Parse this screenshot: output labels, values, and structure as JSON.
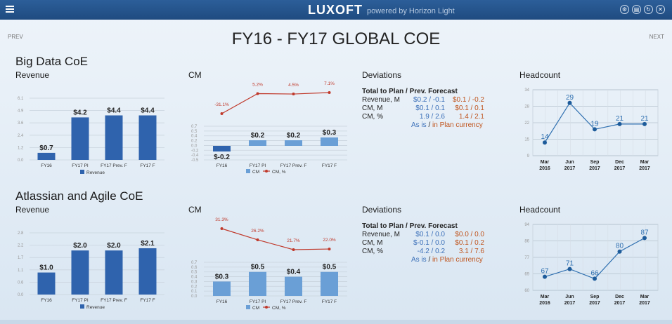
{
  "header": {
    "brand": "LUXOFT",
    "powered": "powered by Horizon Light",
    "icons": [
      "settings-icon",
      "print-icon",
      "refresh-icon",
      "close-icon"
    ]
  },
  "nav": {
    "prev": "PREV",
    "next": "NEXT"
  },
  "page_title": "FY16 - FY17 GLOBAL COE",
  "colors": {
    "bar": "#2f63ad",
    "cm_bar": "#6a9fd6",
    "neg_bar": "#2f63ad",
    "line": "#c0392b",
    "headcount": "#2e6fb0"
  },
  "sections": [
    {
      "title": "Big Data CoE",
      "revenue": {
        "title": "Revenue",
        "categories": [
          "FY16",
          "FY17 PI",
          "FY17 Prev. F",
          "FY17 F"
        ],
        "values": [
          0.7,
          4.2,
          4.4,
          4.4
        ],
        "labels": [
          "$0.7",
          "$4.2",
          "$4.4",
          "$4.4"
        ],
        "ticks": [
          "6.1",
          "4.9",
          "3.6",
          "2.4",
          "1.2",
          "0.0"
        ],
        "ylim": [
          0,
          6.1
        ],
        "legend": "Revenue"
      },
      "cm": {
        "title": "CM",
        "categories": [
          "FY16",
          "FY17 PI",
          "FY17 Prev. F",
          "FY17 F"
        ],
        "values": [
          -0.2,
          0.2,
          0.2,
          0.3
        ],
        "labels": [
          "$-0.2",
          "$0.2",
          "$0.2",
          "$0.3"
        ],
        "percents": [
          -31.1,
          5.2,
          4.5,
          7.1
        ],
        "percent_labels": [
          "-31.1%",
          "5.2%",
          "4.5%",
          "7.1%"
        ],
        "ticks": [
          "0.7",
          "0.5",
          "0.4",
          "0.2",
          "0.0",
          "-0.2",
          "-0.4",
          "-0.5"
        ],
        "ylim": [
          -0.5,
          0.7
        ],
        "legend_bar": "CM",
        "legend_line": "CM, %"
      },
      "deviations": {
        "title": "Deviations",
        "header": "Total to Plan / Prev. Forecast",
        "rows": [
          {
            "label": "Revenue, M",
            "as_is": "$0.2 / -0.1",
            "plan": "$0.1 / -0.2"
          },
          {
            "label": "CM, M",
            "as_is": "$0.1 / 0.1",
            "plan": "$0.1 / 0.1"
          },
          {
            "label": "CM, %",
            "as_is": "1.9 / 2.6",
            "plan": "1.4 / 2.1"
          }
        ],
        "foot_asis": "As is",
        "foot_sep": " / ",
        "foot_plan": "in Plan currency"
      },
      "headcount": {
        "title": "Headcount",
        "categories": [
          [
            "Mar",
            "2016"
          ],
          [
            "Jun",
            "2017"
          ],
          [
            "Sep",
            "2017"
          ],
          [
            "Dec",
            "2017"
          ],
          [
            "Mar",
            "2017"
          ]
        ],
        "values": [
          14,
          29,
          19,
          21,
          21
        ],
        "ticks": [
          "34",
          "28",
          "22",
          "15",
          "9"
        ],
        "ylim": [
          9,
          34
        ]
      }
    },
    {
      "title": "Atlassian and Agile CoE",
      "revenue": {
        "title": "Revenue",
        "categories": [
          "FY16",
          "FY17 PI",
          "FY17 Prev. F",
          "FY17 F"
        ],
        "values": [
          1.0,
          2.0,
          2.0,
          2.1
        ],
        "labels": [
          "$1.0",
          "$2.0",
          "$2.0",
          "$2.1"
        ],
        "ticks": [
          "2.8",
          "2.2",
          "1.7",
          "1.1",
          "0.6",
          "0.0"
        ],
        "ylim": [
          0,
          2.8
        ],
        "legend": "Revenue"
      },
      "cm": {
        "title": "CM",
        "categories": [
          "FY16",
          "FY17 PI",
          "FY17 Prev. F",
          "FY17 F"
        ],
        "values": [
          0.3,
          0.5,
          0.4,
          0.5
        ],
        "labels": [
          "$0.3",
          "$0.5",
          "$0.4",
          "$0.5"
        ],
        "percents": [
          31.3,
          26.2,
          21.7,
          22.0
        ],
        "percent_labels": [
          "31.3%",
          "26.2%",
          "21.7%",
          "22.0%"
        ],
        "ticks": [
          "0.7",
          "0.6",
          "0.5",
          "0.4",
          "0.3",
          "0.2",
          "0.1",
          "0.0"
        ],
        "ylim": [
          0,
          0.7
        ],
        "legend_bar": "CM",
        "legend_line": "CM, %"
      },
      "deviations": {
        "title": "Deviations",
        "header": "Total to Plan / Prev. Forecast",
        "rows": [
          {
            "label": "Revenue, M",
            "as_is": "$0.1 / 0.0",
            "plan": "$0.0 / 0.0"
          },
          {
            "label": "CM, M",
            "as_is": "$-0.1 / 0.0",
            "plan": "$0.1 / 0.2"
          },
          {
            "label": "CM, %",
            "as_is": "-4.2 / 0.2",
            "plan": "3.1 / 7.6"
          }
        ],
        "foot_asis": "As is",
        "foot_sep": " / ",
        "foot_plan": "in Plan currency"
      },
      "headcount": {
        "title": "Headcount",
        "categories": [
          [
            "Mar",
            "2016"
          ],
          [
            "Jun",
            "2017"
          ],
          [
            "Sep",
            "2017"
          ],
          [
            "Dec",
            "2017"
          ],
          [
            "Mar",
            "2017"
          ]
        ],
        "values": [
          67,
          71,
          66,
          80,
          87
        ],
        "ticks": [
          "94",
          "86",
          "77",
          "69",
          "60"
        ],
        "ylim": [
          60,
          94
        ]
      }
    }
  ]
}
